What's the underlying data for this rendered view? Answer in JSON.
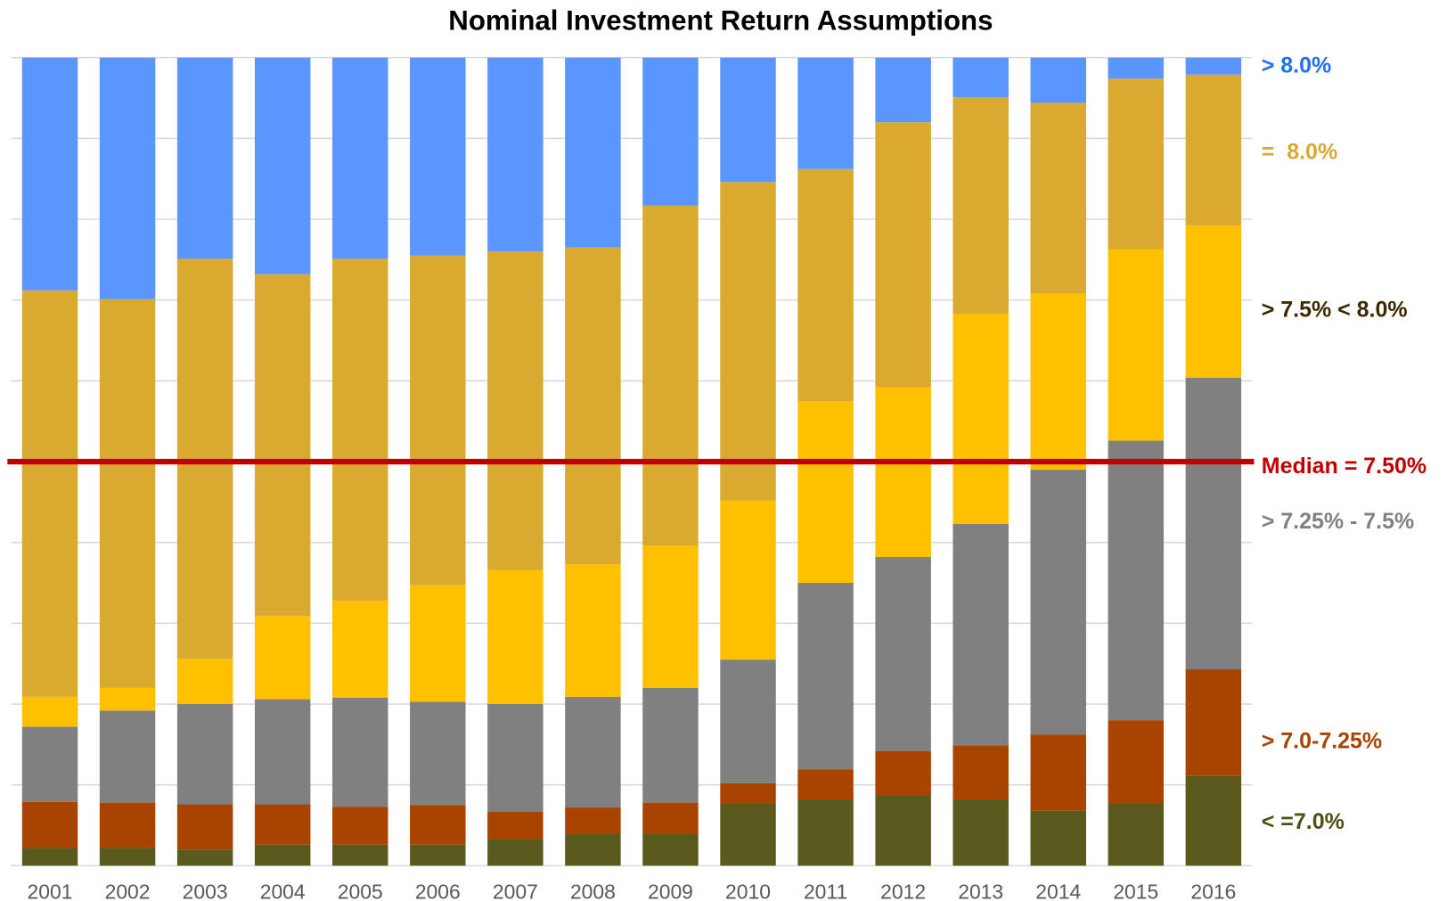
{
  "chart_data": {
    "type": "stacked_bar",
    "title": "Nominal Investment Return Assumptions",
    "categories": [
      "2001",
      "2002",
      "2003",
      "2004",
      "2005",
      "2006",
      "2007",
      "2008",
      "2009",
      "2010",
      "2011",
      "2012",
      "2013",
      "2014",
      "2015",
      "2016"
    ],
    "series": [
      {
        "name": "< =7.0%",
        "color": "#5a5a1f",
        "values": [
          2.2,
          2.2,
          2.0,
          2.6,
          2.6,
          2.6,
          3.3,
          3.9,
          3.9,
          7.7,
          8.2,
          8.7,
          8.2,
          6.8,
          7.7,
          11.1
        ]
      },
      {
        "name": "> 7.0-7.25%",
        "color": "#a84300",
        "values": [
          5.7,
          5.6,
          5.6,
          5.0,
          4.7,
          4.9,
          3.4,
          3.3,
          3.9,
          2.5,
          3.7,
          5.5,
          6.7,
          9.4,
          10.3,
          13.2
        ]
      },
      {
        "name": "> 7.25% - 7.5%",
        "color": "#808080",
        "values": [
          9.3,
          11.4,
          12.4,
          13.0,
          13.5,
          12.8,
          13.3,
          13.7,
          14.2,
          15.3,
          23.1,
          24.0,
          27.4,
          32.8,
          34.6,
          36.1
        ]
      },
      {
        "name": "> 7.5% < 8.0%",
        "color": "#ffc000",
        "values": [
          3.7,
          2.8,
          5.6,
          10.3,
          12.0,
          14.4,
          16.6,
          16.4,
          17.6,
          19.7,
          22.5,
          21.0,
          26.0,
          21.8,
          23.7,
          18.8
        ]
      },
      {
        "name": "=  8.0%",
        "color": "#daa930",
        "values": [
          50.3,
          48.1,
          49.5,
          42.3,
          42.3,
          40.8,
          39.4,
          39.2,
          42.1,
          39.4,
          28.7,
          32.8,
          26.8,
          23.6,
          21.1,
          18.7
        ]
      },
      {
        "name": "> 8.0%",
        "color": "#5b96ff",
        "values": [
          28.8,
          29.9,
          24.9,
          26.8,
          24.9,
          24.5,
          24.0,
          23.5,
          18.3,
          15.4,
          13.8,
          8.0,
          4.9,
          5.6,
          2.6,
          2.1
        ]
      }
    ],
    "legend_label_colors": [
      "#4f4f14",
      "#a84300",
      "#808080",
      "#3a2a00",
      "#daa930",
      "#1f6fff"
    ],
    "median_line": {
      "label": "Median = 7.50%",
      "value": 50,
      "color": "#c00000"
    },
    "ylim": [
      0,
      100
    ],
    "yticks": [
      0,
      10,
      20,
      30,
      40,
      50,
      60,
      70,
      80,
      90,
      100
    ],
    "grid": true
  }
}
